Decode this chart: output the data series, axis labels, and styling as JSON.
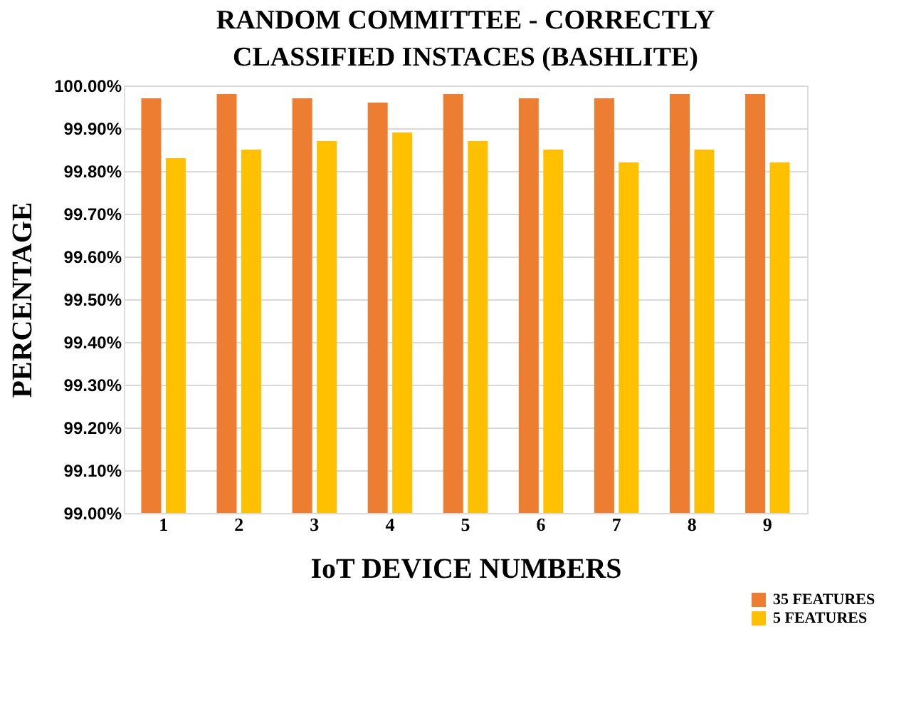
{
  "chart_data": {
    "type": "bar",
    "title": "RANDOM COMMITTEE - CORRECTLY CLASSIFIED INSTACES (BASHLITE)",
    "xlabel": "IoT DEVICE NUMBERS",
    "ylabel": "PERCENTAGE",
    "categories": [
      "1",
      "2",
      "3",
      "4",
      "5",
      "6",
      "7",
      "8",
      "9"
    ],
    "series": [
      {
        "name": "35 FEATURES",
        "color": "#ed7d31",
        "values": [
          99.97,
          99.98,
          99.97,
          99.96,
          99.98,
          99.97,
          99.97,
          99.98,
          99.98
        ]
      },
      {
        "name": "5 FEATURES",
        "color": "#ffc000",
        "values": [
          99.83,
          99.85,
          99.87,
          99.89,
          99.87,
          99.85,
          99.82,
          99.85,
          99.82
        ]
      }
    ],
    "ylim": [
      99.0,
      100.0
    ],
    "yticks": [
      {
        "value": 99.0,
        "label": "99.00%"
      },
      {
        "value": 99.1,
        "label": "99.10%"
      },
      {
        "value": 99.2,
        "label": "99.20%"
      },
      {
        "value": 99.3,
        "label": "99.30%"
      },
      {
        "value": 99.4,
        "label": "99.40%"
      },
      {
        "value": 99.5,
        "label": "99.50%"
      },
      {
        "value": 99.6,
        "label": "99.60%"
      },
      {
        "value": 99.7,
        "label": "99.70%"
      },
      {
        "value": 99.8,
        "label": "99.80%"
      },
      {
        "value": 99.9,
        "label": "99.90%"
      },
      {
        "value": 100.0,
        "label": "100.00%"
      }
    ],
    "grid": "y",
    "legend": "bottom right"
  }
}
